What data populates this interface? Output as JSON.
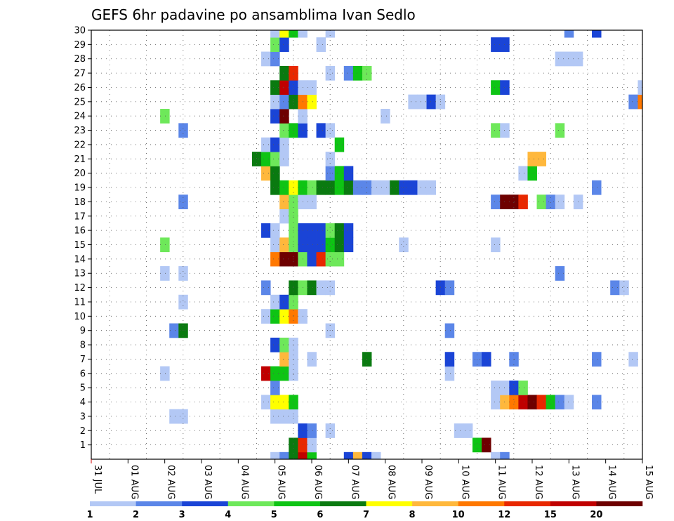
{
  "chart_data": {
    "type": "heatmap",
    "title": "GEFS 6hr padavine po ansamblima Ivan Sedlo",
    "x_tick_labels": [
      "31 JUL",
      "01 AUG",
      "02 AUG",
      "03 AUG",
      "04 AUG",
      "05 AUG",
      "06 AUG",
      "07 AUG",
      "08 AUG",
      "09 AUG",
      "10 AUG",
      "11 AUG",
      "12 AUG",
      "13 AUG",
      "14 AUG",
      "15 AUG"
    ],
    "x_range_days": [
      0,
      15
    ],
    "y_tick_labels": [
      "1",
      "2",
      "3",
      "4",
      "5",
      "6",
      "7",
      "8",
      "9",
      "10",
      "11",
      "12",
      "13",
      "14",
      "15",
      "16",
      "17",
      "18",
      "19",
      "20",
      "21",
      "22",
      "23",
      "24",
      "25",
      "26",
      "27",
      "28",
      "29",
      "30"
    ],
    "y_range": [
      0,
      30
    ],
    "grid": true,
    "legend_placement": "bottom",
    "color_scale": {
      "labels": [
        "1",
        "2",
        "3",
        "4",
        "5",
        "6",
        "7",
        "8",
        "10",
        "12",
        "15",
        "20"
      ],
      "colors": [
        "#b3c8f5",
        "#5b86e8",
        "#1a44d6",
        "#6ee85a",
        "#0ec414",
        "#0a7a10",
        "#ffff00",
        "#ffb83c",
        "#ff7800",
        "#e82800",
        "#c00000",
        "#6e0000"
      ]
    },
    "cells": [
      {
        "member": 0,
        "x": 5.0,
        "v": 1
      },
      {
        "member": 0,
        "x": 5.25,
        "v": 2
      },
      {
        "member": 0,
        "x": 5.5,
        "v": 6
      },
      {
        "member": 0,
        "x": 5.75,
        "v": 11
      },
      {
        "member": 0,
        "x": 6.0,
        "v": 5
      },
      {
        "member": 0,
        "x": 7.0,
        "v": 3
      },
      {
        "member": 0,
        "x": 7.25,
        "v": 8
      },
      {
        "member": 0,
        "x": 7.5,
        "v": 3
      },
      {
        "member": 0,
        "x": 7.75,
        "v": 1
      },
      {
        "member": 0,
        "x": 11.0,
        "v": 1
      },
      {
        "member": 0,
        "x": 11.25,
        "v": 2
      },
      {
        "member": 1,
        "x": 5.5,
        "v": 6
      },
      {
        "member": 1,
        "x": 5.75,
        "v": 10
      },
      {
        "member": 1,
        "x": 6.0,
        "v": 1
      },
      {
        "member": 1,
        "x": 10.5,
        "v": 5
      },
      {
        "member": 1,
        "x": 10.75,
        "v": 12
      },
      {
        "member": 2,
        "x": 5.75,
        "v": 3
      },
      {
        "member": 2,
        "x": 6.0,
        "v": 2
      },
      {
        "member": 2,
        "x": 6.5,
        "v": 1
      },
      {
        "member": 2,
        "x": 10.0,
        "v": 1
      },
      {
        "member": 2,
        "x": 10.25,
        "v": 1
      },
      {
        "member": 3,
        "x": 2.25,
        "v": 1
      },
      {
        "member": 3,
        "x": 2.5,
        "v": 1
      },
      {
        "member": 3,
        "x": 5.0,
        "v": 1
      },
      {
        "member": 3,
        "x": 5.25,
        "v": 1
      },
      {
        "member": 3,
        "x": 5.5,
        "v": 1
      },
      {
        "member": 4,
        "x": 4.75,
        "v": 1
      },
      {
        "member": 4,
        "x": 5.0,
        "v": 7
      },
      {
        "member": 4,
        "x": 5.25,
        "v": 7
      },
      {
        "member": 4,
        "x": 5.5,
        "v": 5
      },
      {
        "member": 4,
        "x": 11.0,
        "v": 1
      },
      {
        "member": 4,
        "x": 11.25,
        "v": 8
      },
      {
        "member": 4,
        "x": 11.5,
        "v": 9
      },
      {
        "member": 4,
        "x": 11.75,
        "v": 11
      },
      {
        "member": 4,
        "x": 12.0,
        "v": 12
      },
      {
        "member": 4,
        "x": 12.25,
        "v": 10
      },
      {
        "member": 4,
        "x": 12.5,
        "v": 5
      },
      {
        "member": 4,
        "x": 12.75,
        "v": 2
      },
      {
        "member": 4,
        "x": 13.0,
        "v": 1
      },
      {
        "member": 4,
        "x": 13.75,
        "v": 2
      },
      {
        "member": 5,
        "x": 5.0,
        "v": 2
      },
      {
        "member": 5,
        "x": 11.0,
        "v": 1
      },
      {
        "member": 5,
        "x": 11.25,
        "v": 1
      },
      {
        "member": 5,
        "x": 11.5,
        "v": 3
      },
      {
        "member": 5,
        "x": 11.75,
        "v": 4
      },
      {
        "member": 6,
        "x": 2.0,
        "v": 1
      },
      {
        "member": 6,
        "x": 4.75,
        "v": 11
      },
      {
        "member": 6,
        "x": 5.0,
        "v": 5
      },
      {
        "member": 6,
        "x": 5.25,
        "v": 5
      },
      {
        "member": 6,
        "x": 5.5,
        "v": 1
      },
      {
        "member": 6,
        "x": 9.75,
        "v": 1
      },
      {
        "member": 7,
        "x": 5.25,
        "v": 8
      },
      {
        "member": 7,
        "x": 5.5,
        "v": 1
      },
      {
        "member": 7,
        "x": 6.0,
        "v": 1
      },
      {
        "member": 7,
        "x": 7.5,
        "v": 6
      },
      {
        "member": 7,
        "x": 9.75,
        "v": 3
      },
      {
        "member": 7,
        "x": 10.5,
        "v": 2
      },
      {
        "member": 7,
        "x": 10.75,
        "v": 3
      },
      {
        "member": 7,
        "x": 11.5,
        "v": 2
      },
      {
        "member": 7,
        "x": 13.75,
        "v": 2
      },
      {
        "member": 7,
        "x": 14.75,
        "v": 1
      },
      {
        "member": 8,
        "x": 5.0,
        "v": 3
      },
      {
        "member": 8,
        "x": 5.25,
        "v": 4
      },
      {
        "member": 8,
        "x": 5.5,
        "v": 1
      },
      {
        "member": 9,
        "x": 2.25,
        "v": 2
      },
      {
        "member": 9,
        "x": 2.5,
        "v": 6
      },
      {
        "member": 9,
        "x": 6.5,
        "v": 1
      },
      {
        "member": 9,
        "x": 9.75,
        "v": 2
      },
      {
        "member": 10,
        "x": 4.75,
        "v": 1
      },
      {
        "member": 10,
        "x": 5.0,
        "v": 5
      },
      {
        "member": 10,
        "x": 5.25,
        "v": 7
      },
      {
        "member": 10,
        "x": 5.5,
        "v": 9
      },
      {
        "member": 10,
        "x": 5.75,
        "v": 1
      },
      {
        "member": 11,
        "x": 2.5,
        "v": 1
      },
      {
        "member": 11,
        "x": 5.0,
        "v": 1
      },
      {
        "member": 11,
        "x": 5.25,
        "v": 3
      },
      {
        "member": 11,
        "x": 5.5,
        "v": 4
      },
      {
        "member": 12,
        "x": 4.75,
        "v": 2
      },
      {
        "member": 12,
        "x": 5.5,
        "v": 6
      },
      {
        "member": 12,
        "x": 5.75,
        "v": 4
      },
      {
        "member": 12,
        "x": 6.0,
        "v": 6
      },
      {
        "member": 12,
        "x": 6.25,
        "v": 1
      },
      {
        "member": 12,
        "x": 6.5,
        "v": 1
      },
      {
        "member": 12,
        "x": 9.5,
        "v": 3
      },
      {
        "member": 12,
        "x": 9.75,
        "v": 2
      },
      {
        "member": 12,
        "x": 14.25,
        "v": 2
      },
      {
        "member": 12,
        "x": 14.5,
        "v": 1
      },
      {
        "member": 13,
        "x": 2.0,
        "v": 1
      },
      {
        "member": 13,
        "x": 2.5,
        "v": 1
      },
      {
        "member": 13,
        "x": 12.75,
        "v": 2
      },
      {
        "member": 14,
        "x": 5.0,
        "v": 9
      },
      {
        "member": 14,
        "x": 5.25,
        "v": 12
      },
      {
        "member": 14,
        "x": 5.5,
        "v": 12
      },
      {
        "member": 14,
        "x": 5.75,
        "v": 4
      },
      {
        "member": 14,
        "x": 6.0,
        "v": 3
      },
      {
        "member": 14,
        "x": 6.25,
        "v": 10
      },
      {
        "member": 14,
        "x": 6.5,
        "v": 4
      },
      {
        "member": 14,
        "x": 6.75,
        "v": 4
      },
      {
        "member": 15,
        "x": 2.0,
        "v": 4
      },
      {
        "member": 15,
        "x": 5.0,
        "v": 1
      },
      {
        "member": 15,
        "x": 5.25,
        "v": 8
      },
      {
        "member": 15,
        "x": 5.5,
        "v": 4
      },
      {
        "member": 15,
        "x": 5.75,
        "v": 3
      },
      {
        "member": 15,
        "x": 6.0,
        "v": 3
      },
      {
        "member": 15,
        "x": 6.25,
        "v": 3
      },
      {
        "member": 15,
        "x": 6.5,
        "v": 5
      },
      {
        "member": 15,
        "x": 6.75,
        "v": 6
      },
      {
        "member": 15,
        "x": 7.0,
        "v": 3
      },
      {
        "member": 15,
        "x": 8.5,
        "v": 1
      },
      {
        "member": 15,
        "x": 11.0,
        "v": 1
      },
      {
        "member": 16,
        "x": 4.75,
        "v": 3
      },
      {
        "member": 16,
        "x": 5.0,
        "v": 1
      },
      {
        "member": 16,
        "x": 5.5,
        "v": 4
      },
      {
        "member": 16,
        "x": 5.75,
        "v": 3
      },
      {
        "member": 16,
        "x": 6.0,
        "v": 3
      },
      {
        "member": 16,
        "x": 6.25,
        "v": 3
      },
      {
        "member": 16,
        "x": 6.5,
        "v": 4
      },
      {
        "member": 16,
        "x": 6.75,
        "v": 6
      },
      {
        "member": 16,
        "x": 7.0,
        "v": 3
      },
      {
        "member": 17,
        "x": 5.25,
        "v": 1
      },
      {
        "member": 17,
        "x": 5.5,
        "v": 4
      },
      {
        "member": 18,
        "x": 2.5,
        "v": 2
      },
      {
        "member": 18,
        "x": 5.25,
        "v": 8
      },
      {
        "member": 18,
        "x": 5.5,
        "v": 4
      },
      {
        "member": 18,
        "x": 5.75,
        "v": 1
      },
      {
        "member": 18,
        "x": 6.0,
        "v": 1
      },
      {
        "member": 18,
        "x": 11.0,
        "v": 2
      },
      {
        "member": 18,
        "x": 11.25,
        "v": 12
      },
      {
        "member": 18,
        "x": 11.5,
        "v": 12
      },
      {
        "member": 18,
        "x": 11.75,
        "v": 10
      },
      {
        "member": 18,
        "x": 12.25,
        "v": 4
      },
      {
        "member": 18,
        "x": 12.5,
        "v": 2
      },
      {
        "member": 18,
        "x": 12.75,
        "v": 1
      },
      {
        "member": 18,
        "x": 13.25,
        "v": 1
      },
      {
        "member": 19,
        "x": 5.0,
        "v": 6
      },
      {
        "member": 19,
        "x": 5.25,
        "v": 5
      },
      {
        "member": 19,
        "x": 5.5,
        "v": 7
      },
      {
        "member": 19,
        "x": 5.75,
        "v": 5
      },
      {
        "member": 19,
        "x": 6.0,
        "v": 4
      },
      {
        "member": 19,
        "x": 6.25,
        "v": 6
      },
      {
        "member": 19,
        "x": 6.5,
        "v": 6
      },
      {
        "member": 19,
        "x": 6.75,
        "v": 5
      },
      {
        "member": 19,
        "x": 7.0,
        "v": 6
      },
      {
        "member": 19,
        "x": 7.25,
        "v": 2
      },
      {
        "member": 19,
        "x": 7.5,
        "v": 2
      },
      {
        "member": 19,
        "x": 7.75,
        "v": 1
      },
      {
        "member": 19,
        "x": 8.0,
        "v": 1
      },
      {
        "member": 19,
        "x": 8.25,
        "v": 6
      },
      {
        "member": 19,
        "x": 8.5,
        "v": 3
      },
      {
        "member": 19,
        "x": 8.75,
        "v": 3
      },
      {
        "member": 19,
        "x": 9.0,
        "v": 1
      },
      {
        "member": 19,
        "x": 9.25,
        "v": 1
      },
      {
        "member": 19,
        "x": 13.75,
        "v": 2
      },
      {
        "member": 20,
        "x": 4.75,
        "v": 8
      },
      {
        "member": 20,
        "x": 5.0,
        "v": 6
      },
      {
        "member": 20,
        "x": 6.5,
        "v": 2
      },
      {
        "member": 20,
        "x": 6.75,
        "v": 5
      },
      {
        "member": 20,
        "x": 7.0,
        "v": 3
      },
      {
        "member": 20,
        "x": 11.75,
        "v": 1
      },
      {
        "member": 20,
        "x": 12.0,
        "v": 5
      },
      {
        "member": 21,
        "x": 4.5,
        "v": 6
      },
      {
        "member": 21,
        "x": 4.75,
        "v": 5
      },
      {
        "member": 21,
        "x": 5.0,
        "v": 4
      },
      {
        "member": 21,
        "x": 5.25,
        "v": 1
      },
      {
        "member": 21,
        "x": 6.5,
        "v": 1
      },
      {
        "member": 21,
        "x": 12.0,
        "v": 8
      },
      {
        "member": 21,
        "x": 12.25,
        "v": 8
      },
      {
        "member": 22,
        "x": 4.75,
        "v": 1
      },
      {
        "member": 22,
        "x": 5.0,
        "v": 3
      },
      {
        "member": 22,
        "x": 5.25,
        "v": 1
      },
      {
        "member": 22,
        "x": 6.75,
        "v": 5
      },
      {
        "member": 23,
        "x": 2.5,
        "v": 2
      },
      {
        "member": 23,
        "x": 5.25,
        "v": 4
      },
      {
        "member": 23,
        "x": 5.5,
        "v": 5
      },
      {
        "member": 23,
        "x": 5.75,
        "v": 3
      },
      {
        "member": 23,
        "x": 6.25,
        "v": 3
      },
      {
        "member": 23,
        "x": 6.5,
        "v": 1
      },
      {
        "member": 23,
        "x": 11.0,
        "v": 4
      },
      {
        "member": 23,
        "x": 11.25,
        "v": 1
      },
      {
        "member": 23,
        "x": 12.75,
        "v": 4
      },
      {
        "member": 24,
        "x": 2.0,
        "v": 4
      },
      {
        "member": 24,
        "x": 5.0,
        "v": 3
      },
      {
        "member": 24,
        "x": 5.25,
        "v": 12
      },
      {
        "member": 24,
        "x": 5.75,
        "v": 1
      },
      {
        "member": 24,
        "x": 8.0,
        "v": 1
      },
      {
        "member": 25,
        "x": 5.0,
        "v": 1
      },
      {
        "member": 25,
        "x": 5.25,
        "v": 2
      },
      {
        "member": 25,
        "x": 5.5,
        "v": 6
      },
      {
        "member": 25,
        "x": 5.75,
        "v": 9
      },
      {
        "member": 25,
        "x": 6.0,
        "v": 7
      },
      {
        "member": 25,
        "x": 8.75,
        "v": 1
      },
      {
        "member": 25,
        "x": 9.0,
        "v": 1
      },
      {
        "member": 25,
        "x": 9.25,
        "v": 3
      },
      {
        "member": 25,
        "x": 9.5,
        "v": 1
      },
      {
        "member": 25,
        "x": 14.75,
        "v": 2
      },
      {
        "member": 25,
        "x": 15.0,
        "v": 9
      },
      {
        "member": 26,
        "x": 5.0,
        "v": 6
      },
      {
        "member": 26,
        "x": 5.25,
        "v": 11
      },
      {
        "member": 26,
        "x": 5.5,
        "v": 3
      },
      {
        "member": 26,
        "x": 5.75,
        "v": 1
      },
      {
        "member": 26,
        "x": 6.0,
        "v": 1
      },
      {
        "member": 26,
        "x": 11.0,
        "v": 5
      },
      {
        "member": 26,
        "x": 11.25,
        "v": 3
      },
      {
        "member": 26,
        "x": 15.0,
        "v": 1
      },
      {
        "member": 27,
        "x": 5.25,
        "v": 6
      },
      {
        "member": 27,
        "x": 5.5,
        "v": 10
      },
      {
        "member": 27,
        "x": 6.5,
        "v": 1
      },
      {
        "member": 27,
        "x": 7.0,
        "v": 2
      },
      {
        "member": 27,
        "x": 7.25,
        "v": 5
      },
      {
        "member": 27,
        "x": 7.5,
        "v": 4
      },
      {
        "member": 28,
        "x": 4.75,
        "v": 1
      },
      {
        "member": 28,
        "x": 5.0,
        "v": 2
      },
      {
        "member": 28,
        "x": 12.75,
        "v": 1
      },
      {
        "member": 28,
        "x": 13.0,
        "v": 1
      },
      {
        "member": 28,
        "x": 13.25,
        "v": 1
      },
      {
        "member": 29,
        "x": 5.0,
        "v": 4
      },
      {
        "member": 29,
        "x": 5.25,
        "v": 3
      },
      {
        "member": 29,
        "x": 6.25,
        "v": 1
      },
      {
        "member": 29,
        "x": 11.0,
        "v": 3
      },
      {
        "member": 29,
        "x": 11.25,
        "v": 3
      },
      {
        "member": 30,
        "x": 5.0,
        "v": 1
      },
      {
        "member": 30,
        "x": 5.25,
        "v": 7
      },
      {
        "member": 30,
        "x": 5.5,
        "v": 5
      },
      {
        "member": 30,
        "x": 5.75,
        "v": 1
      },
      {
        "member": 30,
        "x": 6.5,
        "v": 1
      },
      {
        "member": 30,
        "x": 13.0,
        "v": 2
      },
      {
        "member": 30,
        "x": 13.75,
        "v": 3
      }
    ]
  }
}
